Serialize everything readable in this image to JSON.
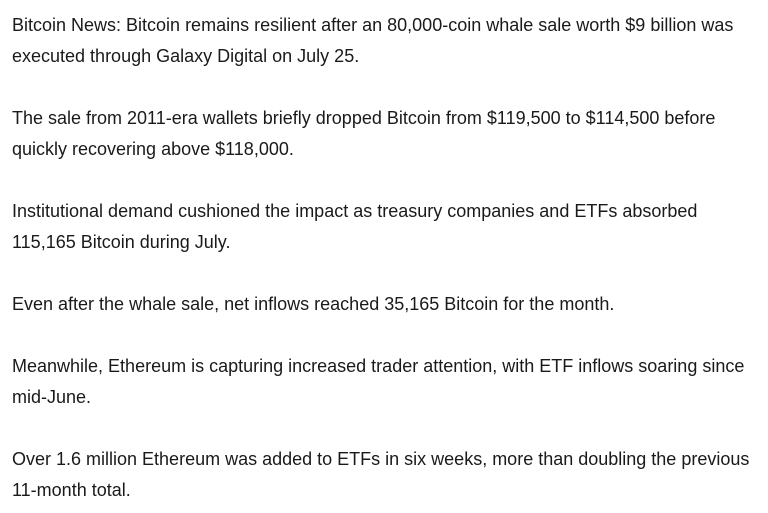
{
  "article": {
    "paragraphs": [
      "Bitcoin News: Bitcoin remains resilient after an 80,000-coin whale sale worth $9 billion was executed through Galaxy Digital on July 25.",
      "The sale from 2011-era wallets briefly dropped Bitcoin from $119,500 to $114,500 before quickly recovering above $118,000.",
      "Institutional demand cushioned the impact as treasury companies and ETFs absorbed 115,165 Bitcoin during July.",
      "Even after the whale sale, net inflows reached 35,165 Bitcoin for the month.",
      "Meanwhile, Ethereum is capturing increased trader attention, with ETF inflows soaring since mid-June.",
      "Over 1.6 million Ethereum was added to ETFs in six weeks, more than doubling the previous 11-month total."
    ]
  }
}
